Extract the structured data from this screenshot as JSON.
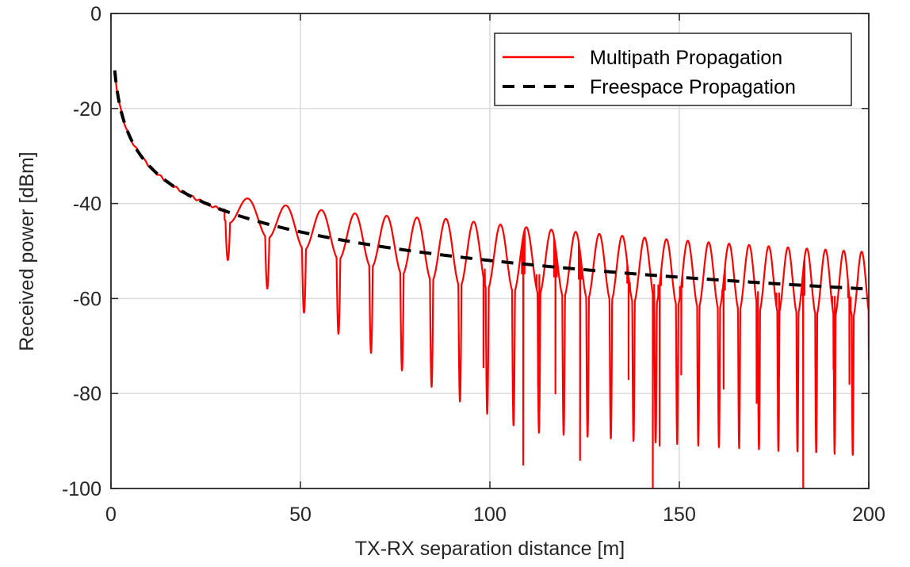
{
  "chart_data": {
    "type": "line",
    "xlabel": "TX-RX separation distance [m]",
    "ylabel": "Received power [dBm]",
    "xlim": [
      0,
      200
    ],
    "ylim": [
      -100,
      0
    ],
    "xticks": [
      0,
      50,
      100,
      150,
      200
    ],
    "yticks": [
      0,
      -20,
      -40,
      -60,
      -80,
      -100
    ],
    "xtick_labels": [
      "0",
      "50",
      "100",
      "150",
      "200"
    ],
    "ytick_labels": [
      "0",
      "-20",
      "-40",
      "-60",
      "-80",
      "-100"
    ],
    "grid": true,
    "legend_position": "top-right",
    "series": [
      {
        "name": "Multipath Propagation",
        "color": "#ff0000",
        "style": "solid",
        "model": "two-ray interference around free-space level, with deep fades",
        "x_range": [
          1,
          200
        ],
        "values_sampled": [
          [
            1,
            -12
          ],
          [
            5,
            -26
          ],
          [
            10,
            -32
          ],
          [
            20,
            -38
          ],
          [
            30,
            -41.5
          ],
          [
            40,
            -44.5
          ],
          [
            50,
            -46.5
          ],
          [
            60,
            -48
          ],
          [
            70,
            -49
          ],
          [
            80,
            -50
          ],
          [
            100,
            -52
          ],
          [
            109,
            -95
          ],
          [
            124,
            -94
          ],
          [
            143,
            -100
          ],
          [
            145,
            -91
          ],
          [
            183,
            -100
          ],
          [
            200,
            -73
          ]
        ]
      },
      {
        "name": "Freespace Propagation",
        "color": "#000000",
        "style": "dashed",
        "model": "P = -12 - 20*log10(d)",
        "values_sampled": [
          [
            1,
            -12
          ],
          [
            10,
            -32
          ],
          [
            25,
            -39.9
          ],
          [
            50,
            -46
          ],
          [
            100,
            -52
          ],
          [
            150,
            -55.5
          ],
          [
            200,
            -58
          ]
        ]
      }
    ]
  }
}
